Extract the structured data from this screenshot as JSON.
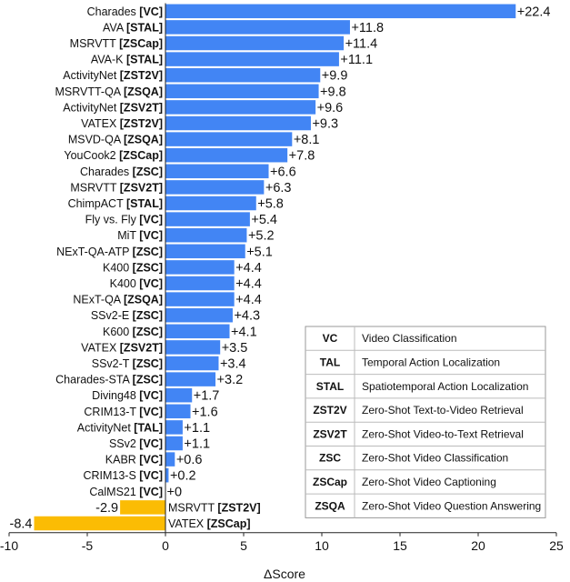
{
  "chart_data": {
    "type": "bar",
    "orientation": "horizontal",
    "xlabel": "ΔScore",
    "ylabel": "",
    "xlim": [
      -10,
      25
    ],
    "xticks": [
      -10,
      -5,
      0,
      5,
      10,
      15,
      20,
      25
    ],
    "grid": false,
    "colors": {
      "positive": "#4285f4",
      "negative": "#fbbc04"
    },
    "bars": [
      {
        "dataset": "Charades",
        "task": "VC",
        "value": 22.4,
        "label": "+22.4"
      },
      {
        "dataset": "AVA",
        "task": "STAL",
        "value": 11.8,
        "label": "+11.8"
      },
      {
        "dataset": "MSRVTT",
        "task": "ZSCap",
        "value": 11.4,
        "label": "+11.4"
      },
      {
        "dataset": "AVA-K",
        "task": "STAL",
        "value": 11.1,
        "label": "+11.1"
      },
      {
        "dataset": "ActivityNet",
        "task": "ZST2V",
        "value": 9.9,
        "label": "+9.9"
      },
      {
        "dataset": "MSRVTT-QA",
        "task": "ZSQA",
        "value": 9.8,
        "label": "+9.8"
      },
      {
        "dataset": "ActivityNet",
        "task": "ZSV2T",
        "value": 9.6,
        "label": "+9.6"
      },
      {
        "dataset": "VATEX",
        "task": "ZST2V",
        "value": 9.3,
        "label": "+9.3"
      },
      {
        "dataset": "MSVD-QA",
        "task": "ZSQA",
        "value": 8.1,
        "label": "+8.1"
      },
      {
        "dataset": "YouCook2",
        "task": "ZSCap",
        "value": 7.8,
        "label": "+7.8"
      },
      {
        "dataset": "Charades",
        "task": "ZSC",
        "value": 6.6,
        "label": "+6.6"
      },
      {
        "dataset": "MSRVTT",
        "task": "ZSV2T",
        "value": 6.3,
        "label": "+6.3"
      },
      {
        "dataset": "ChimpACT",
        "task": "STAL",
        "value": 5.8,
        "label": "+5.8"
      },
      {
        "dataset": "Fly vs. Fly",
        "task": "VC",
        "value": 5.4,
        "label": "+5.4"
      },
      {
        "dataset": "MiT",
        "task": "VC",
        "value": 5.2,
        "label": "+5.2"
      },
      {
        "dataset": "NExT-QA-ATP",
        "task": "ZSC",
        "value": 5.1,
        "label": "+5.1"
      },
      {
        "dataset": "K400",
        "task": "ZSC",
        "value": 4.4,
        "label": "+4.4"
      },
      {
        "dataset": "K400",
        "task": "VC",
        "value": 4.4,
        "label": "+4.4"
      },
      {
        "dataset": "NExT-QA",
        "task": "ZSQA",
        "value": 4.4,
        "label": "+4.4"
      },
      {
        "dataset": "SSv2-E",
        "task": "ZSC",
        "value": 4.3,
        "label": "+4.3"
      },
      {
        "dataset": "K600",
        "task": "ZSC",
        "value": 4.1,
        "label": "+4.1"
      },
      {
        "dataset": "VATEX",
        "task": "ZSV2T",
        "value": 3.5,
        "label": "+3.5"
      },
      {
        "dataset": "SSv2-T",
        "task": "ZSC",
        "value": 3.4,
        "label": "+3.4"
      },
      {
        "dataset": "Charades-STA",
        "task": "ZSC",
        "value": 3.2,
        "label": "+3.2"
      },
      {
        "dataset": "Diving48",
        "task": "VC",
        "value": 1.7,
        "label": "+1.7"
      },
      {
        "dataset": "CRIM13-T",
        "task": "VC",
        "value": 1.6,
        "label": "+1.6"
      },
      {
        "dataset": "ActivityNet",
        "task": "TAL",
        "value": 1.1,
        "label": "+1.1"
      },
      {
        "dataset": "SSv2",
        "task": "VC",
        "value": 1.1,
        "label": "+1.1"
      },
      {
        "dataset": "KABR",
        "task": "VC",
        "value": 0.6,
        "label": "+0.6"
      },
      {
        "dataset": "CRIM13-S",
        "task": "VC",
        "value": 0.2,
        "label": "+0.2"
      },
      {
        "dataset": "CalMS21",
        "task": "VC",
        "value": 0,
        "label": "+0"
      },
      {
        "dataset": "MSRVTT",
        "task": "ZST2V",
        "value": -2.9,
        "label": "-2.9"
      },
      {
        "dataset": "VATEX",
        "task": "ZSCap",
        "value": -8.4,
        "label": "-8.4"
      }
    ],
    "legend": {
      "placement": "lower-right",
      "entries": [
        {
          "abbr": "VC",
          "desc": "Video Classification"
        },
        {
          "abbr": "TAL",
          "desc": "Temporal Action Localization"
        },
        {
          "abbr": "STAL",
          "desc": "Spatiotemporal Action Localization"
        },
        {
          "abbr": "ZST2V",
          "desc": "Zero-Shot Text-to-Video Retrieval"
        },
        {
          "abbr": "ZSV2T",
          "desc": "Zero-Shot Video-to-Text Retrieval"
        },
        {
          "abbr": "ZSC",
          "desc": "Zero-Shot Video Classification"
        },
        {
          "abbr": "ZSCap",
          "desc": "Zero-Shot Video Captioning"
        },
        {
          "abbr": "ZSQA",
          "desc": "Zero-Shot Video Question Answering"
        }
      ]
    }
  }
}
